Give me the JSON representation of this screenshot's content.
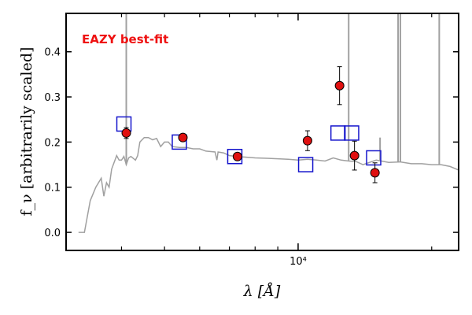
{
  "chart_data": {
    "type": "scatter",
    "title": "",
    "xlabel": "λ [Å]",
    "ylabel": "f_ν [arbitrarily scaled]",
    "xscale": "log",
    "xlim": [
      3000,
      23000
    ],
    "ylim": [
      -0.04,
      0.485
    ],
    "x_tick_labels": [
      {
        "value": 10000,
        "label": "10⁴"
      }
    ],
    "x_minor_ticks": [
      4000,
      5000,
      6000,
      7000,
      8000,
      9000,
      20000
    ],
    "y_ticks": [
      0.0,
      0.1,
      0.2,
      0.3,
      0.4
    ],
    "y_tick_labels": [
      "0.0",
      "0.1",
      "0.2",
      "0.3",
      "0.4"
    ],
    "grid": false,
    "annotation": {
      "text": "EAZY best-fit",
      "color": "#ee1111"
    },
    "series": [
      {
        "kind": "line",
        "color": "#a0a0a0",
        "x": [
          3200,
          3300,
          3400,
          3500,
          3600,
          3650,
          3700,
          3750,
          3800,
          3900,
          3950,
          4000,
          4050,
          4100,
          4150,
          4200,
          4300,
          4350,
          4400,
          4500,
          4600,
          4700,
          4800,
          4900,
          5000,
          5100,
          5200,
          5400,
          5600,
          5800,
          6000,
          6200,
          6500,
          6560,
          6600,
          6800,
          7000,
          7500,
          8000,
          8500,
          9000,
          9500,
          10000,
          10500,
          11000,
          11500,
          12000,
          12500,
          13000,
          13500,
          14000,
          15000,
          16000,
          17000,
          18000,
          19000,
          20000,
          21000,
          22000,
          23000
        ],
        "y": [
          0.0,
          0.0,
          0.07,
          0.1,
          0.12,
          0.08,
          0.11,
          0.1,
          0.14,
          0.17,
          0.16,
          0.16,
          0.168,
          0.15,
          0.165,
          0.168,
          0.16,
          0.17,
          0.2,
          0.21,
          0.21,
          0.205,
          0.208,
          0.19,
          0.2,
          0.2,
          0.19,
          0.188,
          0.188,
          0.185,
          0.185,
          0.18,
          0.178,
          0.16,
          0.178,
          0.176,
          0.17,
          0.167,
          0.165,
          0.164,
          0.163,
          0.162,
          0.16,
          0.162,
          0.16,
          0.158,
          0.165,
          0.16,
          0.158,
          0.157,
          0.15,
          0.16,
          0.155,
          0.156,
          0.152,
          0.152,
          0.15,
          0.15,
          0.146,
          0.138
        ]
      },
      {
        "kind": "emission_lines",
        "color": "#a0a0a0",
        "lines": [
          {
            "x": 4100,
            "y": 0.485
          },
          {
            "x": 13000,
            "y": 0.485
          },
          {
            "x": 16800,
            "y": 0.485
          },
          {
            "x": 17000,
            "y": 0.485
          },
          {
            "x": 20800,
            "y": 0.485
          },
          {
            "x": 15300,
            "y": 0.21
          }
        ]
      },
      {
        "kind": "model_squares",
        "color": "#1515cc",
        "x": [
          4050,
          5400,
          7200,
          10400,
          12300,
          13200,
          14800
        ],
        "y": [
          0.24,
          0.2,
          0.168,
          0.15,
          0.22,
          0.22,
          0.165
        ]
      },
      {
        "kind": "observed_points",
        "color": "#e01010",
        "x": [
          4100,
          5500,
          7300,
          10500,
          12400,
          13400,
          14900
        ],
        "y": [
          0.22,
          0.21,
          0.168,
          0.203,
          0.325,
          0.17,
          0.132
        ],
        "err": [
          0.012,
          0.008,
          0.008,
          0.022,
          0.042,
          0.032,
          0.022
        ]
      }
    ]
  }
}
